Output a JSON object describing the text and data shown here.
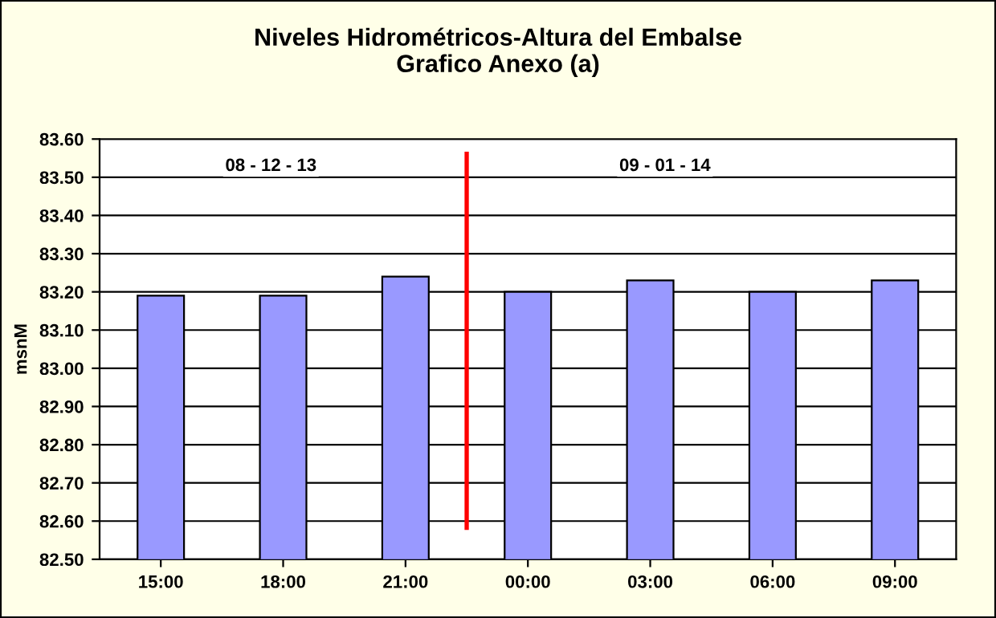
{
  "chart_data": {
    "type": "bar",
    "title": "Niveles Hidrométricos-Altura del Embalse\nGrafico Anexo (a)",
    "ylabel": "msnM",
    "categories": [
      "15:00",
      "18:00",
      "21:00",
      "00:00",
      "03:00",
      "06:00",
      "09:00"
    ],
    "values": [
      83.19,
      83.19,
      83.24,
      83.2,
      83.23,
      83.2,
      83.23
    ],
    "color": "#9999ff",
    "ylim": [
      82.5,
      83.6
    ],
    "yticks": [
      {
        "value": 82.5,
        "label": "82.50"
      },
      {
        "value": 82.6,
        "label": "82.60"
      },
      {
        "value": 82.7,
        "label": "82.70"
      },
      {
        "value": 82.8,
        "label": "82.80"
      },
      {
        "value": 82.9,
        "label": "82.90"
      },
      {
        "value": 83.0,
        "label": "83.00"
      },
      {
        "value": 83.1,
        "label": "83.10"
      },
      {
        "value": 83.2,
        "label": "83.20"
      },
      {
        "value": 83.3,
        "label": "83.30"
      },
      {
        "value": 83.4,
        "label": "83.40"
      },
      {
        "value": 83.5,
        "label": "83.50"
      },
      {
        "value": 83.6,
        "label": "83.60"
      }
    ],
    "grid": "y",
    "legend": false,
    "annotations": [
      "08 - 12 - 13",
      "09 - 01 - 14"
    ]
  }
}
